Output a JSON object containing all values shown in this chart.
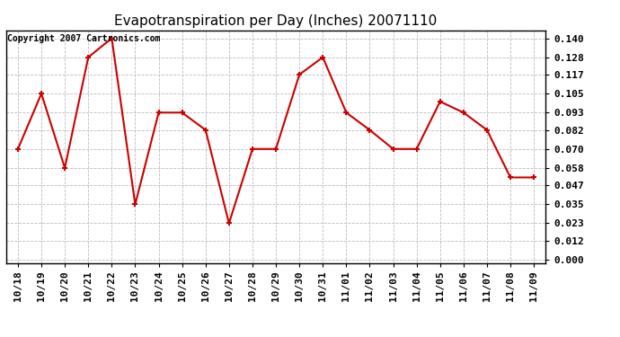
{
  "title": "Evapotranspiration per Day (Inches) 20071110",
  "copyright": "Copyright 2007 Cartronics.com",
  "x_labels": [
    "10/18",
    "10/19",
    "10/20",
    "10/21",
    "10/22",
    "10/23",
    "10/24",
    "10/25",
    "10/26",
    "10/27",
    "10/28",
    "10/29",
    "10/30",
    "10/31",
    "11/01",
    "11/02",
    "11/03",
    "11/04",
    "11/05",
    "11/06",
    "11/07",
    "11/08",
    "11/09"
  ],
  "y_values": [
    0.07,
    0.105,
    0.058,
    0.128,
    0.14,
    0.035,
    0.093,
    0.093,
    0.082,
    0.023,
    0.07,
    0.07,
    0.117,
    0.128,
    0.093,
    0.082,
    0.07,
    0.07,
    0.1,
    0.093,
    0.082,
    0.052,
    0.052
  ],
  "line_color": "#cc0000",
  "marker": "+",
  "marker_size": 5,
  "marker_linewidth": 1.5,
  "line_width": 1.5,
  "background_color": "#ffffff",
  "grid_color": "#bbbbbb",
  "y_ticks": [
    0.0,
    0.012,
    0.023,
    0.035,
    0.047,
    0.058,
    0.07,
    0.082,
    0.093,
    0.105,
    0.117,
    0.128,
    0.14
  ],
  "ylim": [
    -0.002,
    0.145
  ],
  "title_fontsize": 11,
  "tick_fontsize": 8,
  "copyright_fontsize": 7
}
